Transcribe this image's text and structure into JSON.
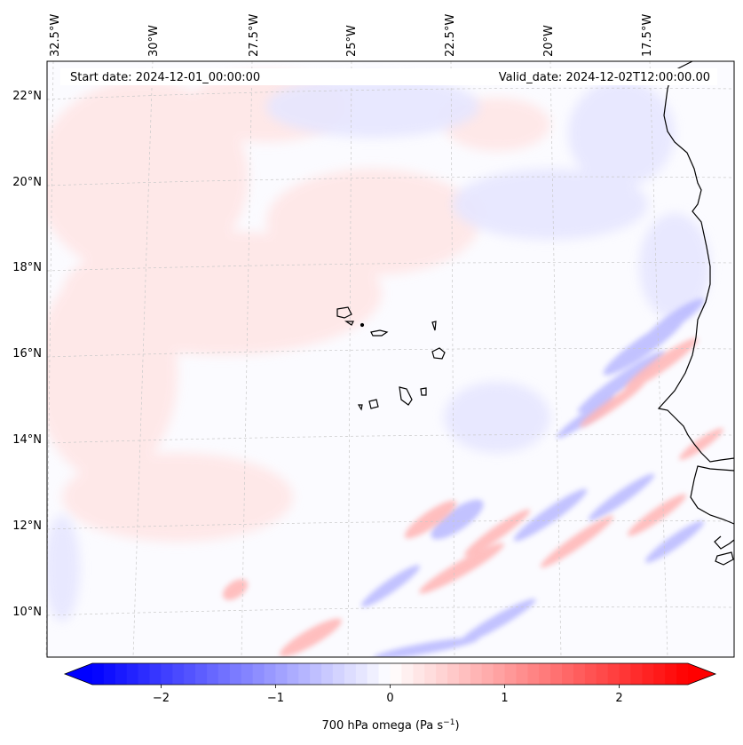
{
  "map": {
    "start_date": "Start date: 2024-12-01_00:00:00",
    "valid_date": "Valid_date: 2024-12-02T12:00:00.00",
    "lon_labels": [
      "32.5°W",
      "30°W",
      "27.5°W",
      "25°W",
      "22.5°W",
      "20°W",
      "17.5°W"
    ],
    "lat_labels": [
      "22°N",
      "20°N",
      "18°N",
      "16°N",
      "14°N",
      "12°N",
      "10°N"
    ],
    "colors": {
      "negative": "#0000ff",
      "positive": "#ff0000",
      "zero": "#ffffff",
      "coast": "#000000",
      "grid": "#c8c8c8"
    }
  },
  "colorbar": {
    "label_prefix": "700 hPa omega (Pa s",
    "label_exponent": "−1",
    "label_suffix": ")",
    "ticks": [
      "−2",
      "−1",
      "0",
      "1",
      "2"
    ],
    "tick_values": [
      -2,
      -1,
      0,
      1,
      2
    ],
    "range": [
      -2.6,
      2.6
    ]
  }
}
